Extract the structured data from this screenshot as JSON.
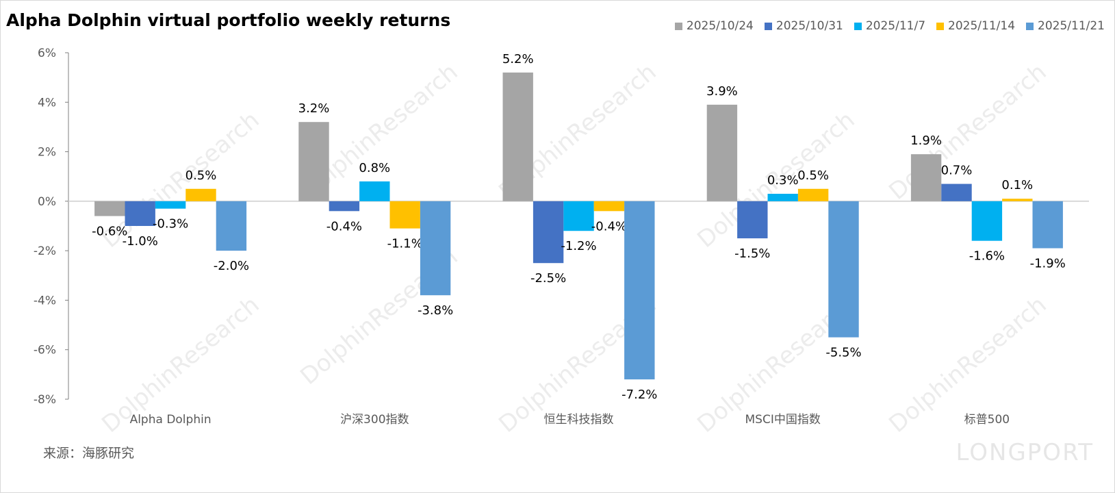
{
  "chart_data": {
    "type": "bar",
    "title": "Alpha Dolphin virtual portfolio weekly returns",
    "categories": [
      "Alpha Dolphin",
      "沪深300指数",
      "恒生科技指数",
      "MSCI中国指数",
      "标普500"
    ],
    "series": [
      {
        "name": "2025/10/24",
        "color": "#a5a5a5",
        "values": [
          -0.6,
          3.2,
          5.2,
          3.9,
          1.9
        ]
      },
      {
        "name": "2025/10/31",
        "color": "#4472c4",
        "values": [
          -1.0,
          -0.4,
          -2.5,
          -1.5,
          0.7
        ]
      },
      {
        "name": "2025/11/7",
        "color": "#00b0f0",
        "values": [
          -0.3,
          0.8,
          -1.2,
          0.3,
          -1.6
        ]
      },
      {
        "name": "2025/11/14",
        "color": "#ffc000",
        "values": [
          0.5,
          -1.1,
          -0.4,
          0.5,
          0.1
        ]
      },
      {
        "name": "2025/11/21",
        "color": "#5b9bd5",
        "values": [
          -2.0,
          -3.8,
          -7.2,
          -5.5,
          -1.9
        ]
      }
    ],
    "ylim": [
      -8,
      6
    ],
    "yticks": [
      "-8%",
      "-6%",
      "-4%",
      "-2%",
      "0%",
      "2%",
      "4%",
      "6%"
    ],
    "unit": "%",
    "legend": "top-right",
    "grid": false
  },
  "source": "来源：海豚研究",
  "watermark": "DolphinResearch",
  "logo": "LONGPORT"
}
